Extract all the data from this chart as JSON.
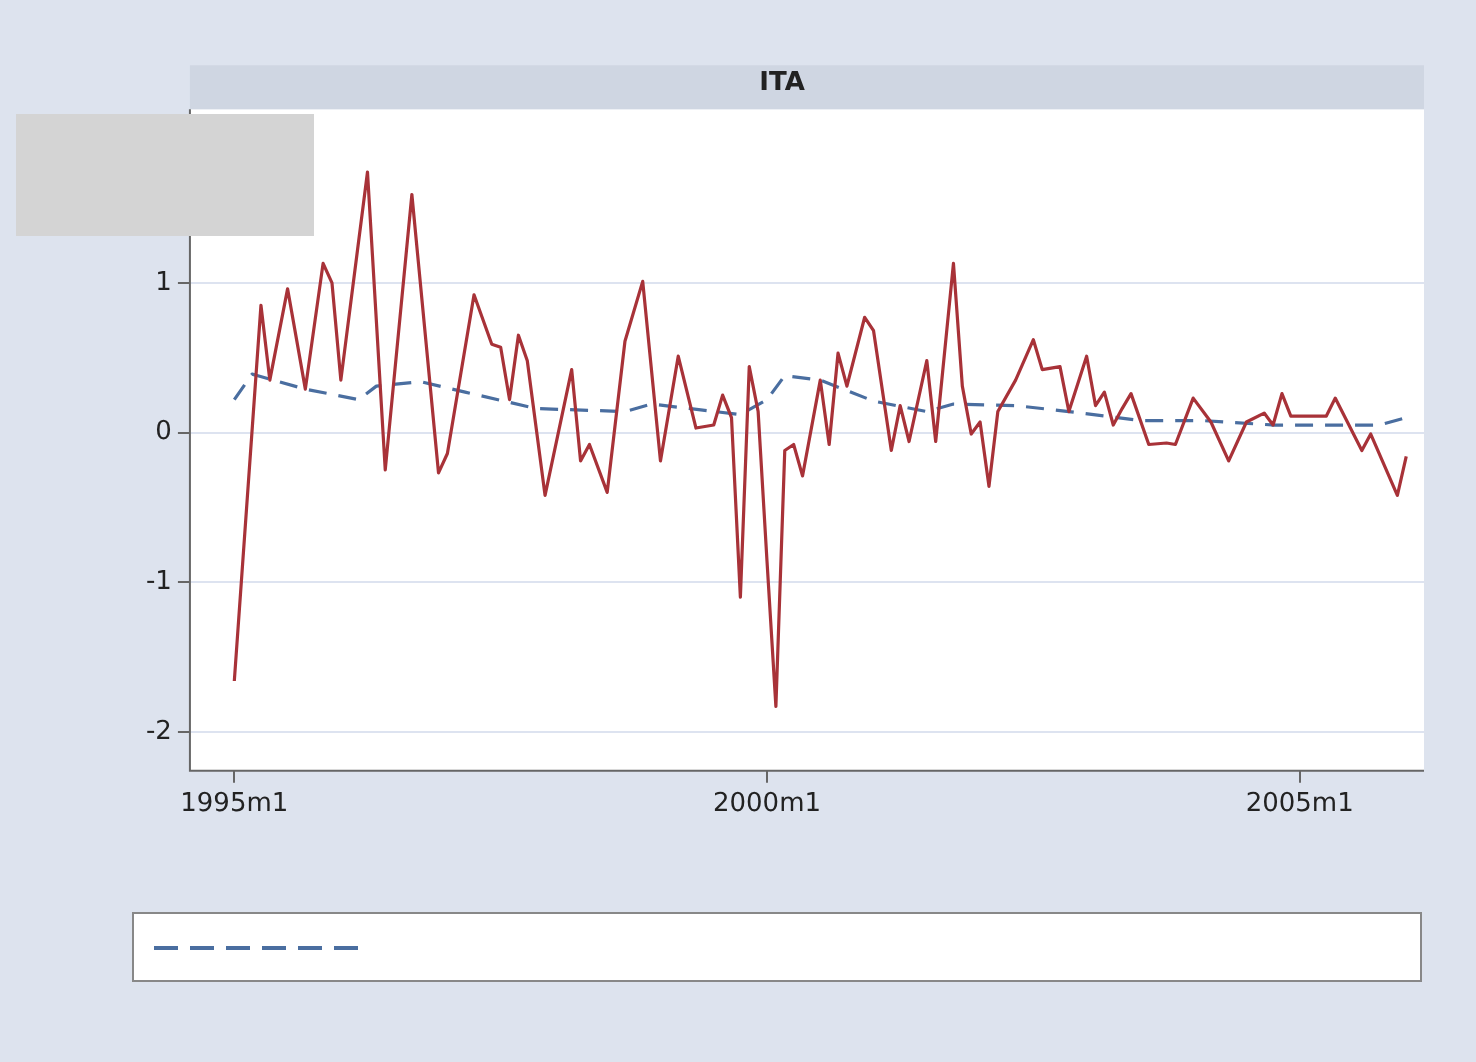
{
  "chart_data": {
    "type": "line",
    "title": "ITA",
    "xlim": [
      "1994-08",
      "2006-03"
    ],
    "xticks": [
      {
        "value": "1995-01",
        "label": "1995m1"
      },
      {
        "value": "2000-01",
        "label": "2000m1"
      },
      {
        "value": "2005-01",
        "label": "2005m1"
      }
    ],
    "ylim": [
      -2.26,
      2.16
    ],
    "yticks": [
      -2,
      -1,
      0,
      1
    ],
    "grid": "y",
    "legend": false,
    "series": [
      {
        "color": "#a83238",
        "line_style": "solid",
        "x": [
          "1995-01",
          "1995-04",
          "1995-05",
          "1995-07",
          "1995-09",
          "1995-11",
          "1995-12",
          "1996-01",
          "1996-04",
          "1996-06",
          "1996-09",
          "1996-12",
          "1997-01",
          "1997-04",
          "1997-06",
          "1997-07",
          "1997-08",
          "1997-09",
          "1997-10",
          "1997-12",
          "1998-03",
          "1998-04",
          "1998-05",
          "1998-07",
          "1998-09",
          "1998-11",
          "1999-01",
          "1999-03",
          "1999-05",
          "1999-07",
          "1999-08",
          "1999-09",
          "1999-10",
          "1999-11",
          "1999-12",
          "2000-01",
          "2000-02",
          "2000-03",
          "2000-04",
          "2000-05",
          "2000-07",
          "2000-08",
          "2000-09",
          "2000-10",
          "2000-12",
          "2001-01",
          "2001-03",
          "2001-04",
          "2001-05",
          "2001-07",
          "2001-08",
          "2001-10",
          "2001-11",
          "2001-12",
          "2002-01",
          "2002-02",
          "2002-03",
          "2002-05",
          "2002-07",
          "2002-08",
          "2002-10",
          "2002-11",
          "2003-01",
          "2003-02",
          "2003-03",
          "2003-04",
          "2003-05",
          "2003-06",
          "2003-08",
          "2003-10",
          "2003-11",
          "2004-01",
          "2004-03",
          "2004-05",
          "2004-07",
          "2004-09",
          "2004-10",
          "2004-11",
          "2004-12",
          "2005-04",
          "2005-05",
          "2005-08",
          "2005-09",
          "2005-12",
          "2006-01"
        ],
        "values": [
          -1.66,
          0.85,
          0.35,
          0.96,
          0.29,
          1.13,
          1.0,
          0.35,
          1.74,
          -0.25,
          1.59,
          -0.27,
          -0.14,
          0.92,
          0.59,
          0.57,
          0.22,
          0.65,
          0.48,
          -0.42,
          0.42,
          -0.19,
          -0.08,
          -0.4,
          0.61,
          1.01,
          -0.19,
          0.51,
          0.03,
          0.05,
          0.25,
          0.1,
          -1.1,
          0.44,
          0.14,
          -0.86,
          -1.83,
          -0.12,
          -0.08,
          -0.29,
          0.35,
          -0.08,
          0.53,
          0.31,
          0.77,
          0.68,
          -0.12,
          0.18,
          -0.06,
          0.48,
          -0.06,
          1.13,
          0.31,
          -0.01,
          0.07,
          -0.36,
          0.14,
          0.35,
          0.62,
          0.42,
          0.44,
          0.14,
          0.51,
          0.18,
          0.27,
          0.05,
          0.16,
          0.26,
          -0.08,
          -0.07,
          -0.08,
          0.23,
          0.07,
          -0.19,
          0.07,
          0.13,
          0.05,
          0.26,
          0.11,
          0.11,
          0.23,
          -0.12,
          -0.01,
          -0.42,
          -0.16
        ]
      },
      {
        "color": "#4a6ea0",
        "line_style": "dashed",
        "x": [
          "1995-01",
          "1995-03",
          "1995-09",
          "1996-03",
          "1996-05",
          "1996-10",
          "1997-03",
          "1997-11",
          "1998-09",
          "1998-12",
          "1999-10",
          "2000-01",
          "2000-03",
          "2000-07",
          "2001-01",
          "2001-07",
          "2001-10",
          "2002-05",
          "2002-11",
          "2003-07",
          "2004-02",
          "2004-10",
          "2005-06",
          "2005-10",
          "2006-01"
        ],
        "values": [
          0.22,
          0.39,
          0.29,
          0.22,
          0.31,
          0.34,
          0.27,
          0.16,
          0.14,
          0.19,
          0.12,
          0.22,
          0.38,
          0.35,
          0.21,
          0.14,
          0.19,
          0.18,
          0.14,
          0.08,
          0.08,
          0.05,
          0.05,
          0.05,
          0.1
        ]
      }
    ]
  }
}
